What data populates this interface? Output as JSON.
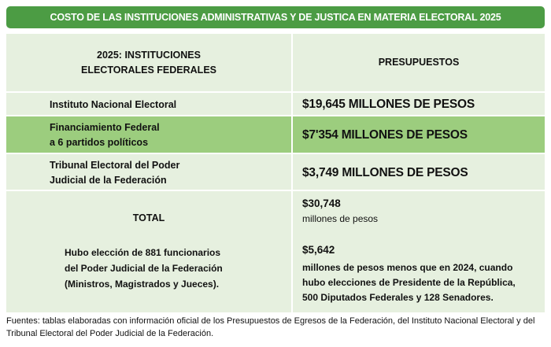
{
  "title": "COSTO DE LAS INSTITUCIONES ADMINISTRATIVAS Y DE JUSTICA EN MATERIA ELECTORAL 2025",
  "header": {
    "col1_line1": "2025: INSTITUCIONES",
    "col1_line2": "ELECTORALES FEDERALES",
    "col2": "PRESUPUESTOS"
  },
  "rows": [
    {
      "name_line1": "Instituto Nacional Electoral",
      "name_line2": "",
      "amount": "$19,645 MILLONES DE PESOS"
    },
    {
      "name_line1": "Financiamiento Federal",
      "name_line2": "a 6 partidos políticos",
      "amount": "$7'354 MILLONES DE PESOS"
    },
    {
      "name_line1": "Tribunal Electoral del Poder",
      "name_line2": "Judicial de la Federación",
      "amount": "$3,749 MILLONES DE PESOS"
    }
  ],
  "total": {
    "label": "TOTAL",
    "amount": "$30,748",
    "unit": "millones de pesos",
    "note_lines": [
      "Hubo elección de 881 funcionarios",
      "del Poder Judicial de la Federación",
      "(Ministros, Magistrados y Jueces)."
    ],
    "diff_amount": "$5,642",
    "diff_lines": [
      "millones de pesos menos que en 2024, cuando",
      "hubo elecciones de Presidente de la República,",
      "500 Diputados Federales y 128 Senadores."
    ]
  },
  "footer": "Fuentes: tablas elaboradas con información oficial de los Presupuestos de Egresos de la Federación, del Instituto Nacional Electoral y del Tribunal Electoral del Poder Judicial de la Federación.",
  "colors": {
    "title_bg": "#4c9c44",
    "row_light": "#e6f0df",
    "row_highlight": "#9ccd7e"
  }
}
